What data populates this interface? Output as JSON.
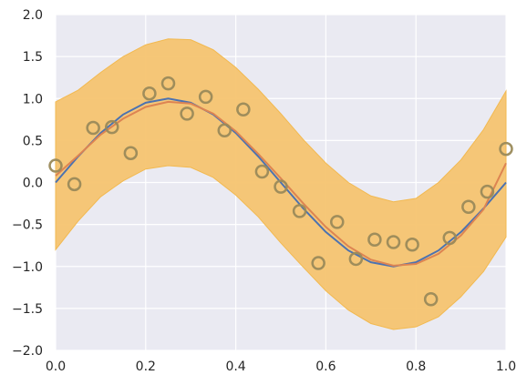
{
  "chart_data": {
    "type": "scatter",
    "title": "",
    "xlabel": "",
    "ylabel": "",
    "xlim": [
      0.0,
      1.0
    ],
    "ylim": [
      -2.0,
      2.0
    ],
    "grid": true,
    "x_ticks": [
      "0.0",
      "0.2",
      "0.4",
      "0.6",
      "0.8",
      "1.0"
    ],
    "y_ticks": [
      "2.0",
      "1.5",
      "1.0",
      "0.5",
      "0.0",
      "−0.5",
      "−1.0",
      "−1.5",
      "−2.0"
    ],
    "colors": {
      "background": "#eaeaf2",
      "grid": "#ffffff",
      "band": "#f5c470",
      "band_edge": "#f2b950",
      "true_line": "#4c72b0",
      "fit_line": "#dd8452",
      "points": "#9a8a5a"
    },
    "series": [
      {
        "kind": "points",
        "x": [
          0.0,
          0.0417,
          0.0833,
          0.125,
          0.1667,
          0.2083,
          0.25,
          0.2917,
          0.3333,
          0.375,
          0.4167,
          0.4583,
          0.5,
          0.5417,
          0.5833,
          0.625,
          0.6667,
          0.7083,
          0.75,
          0.7917,
          0.8333,
          0.875,
          0.9167,
          0.9583,
          1.0
        ],
        "y": [
          0.2,
          -0.02,
          0.65,
          0.66,
          0.35,
          1.06,
          1.18,
          0.82,
          1.02,
          0.62,
          0.87,
          0.13,
          -0.05,
          -0.34,
          -0.96,
          -0.47,
          -0.91,
          -0.68,
          -0.71,
          -0.74,
          -1.39,
          -0.66,
          -0.29,
          -0.11,
          0.4
        ]
      },
      {
        "kind": "true_curve",
        "x": [
          0.0,
          0.05,
          0.1,
          0.15,
          0.2,
          0.25,
          0.3,
          0.35,
          0.4,
          0.45,
          0.5,
          0.55,
          0.6,
          0.65,
          0.7,
          0.75,
          0.8,
          0.85,
          0.9,
          0.95,
          1.0
        ],
        "y": [
          0.0,
          0.31,
          0.59,
          0.81,
          0.95,
          1.0,
          0.95,
          0.81,
          0.59,
          0.31,
          0.0,
          -0.31,
          -0.59,
          -0.81,
          -0.95,
          -1.0,
          -0.95,
          -0.81,
          -0.59,
          -0.31,
          0.0
        ]
      },
      {
        "kind": "fit_curve",
        "x": [
          0.0,
          0.05,
          0.1,
          0.15,
          0.2,
          0.25,
          0.3,
          0.35,
          0.4,
          0.45,
          0.5,
          0.55,
          0.6,
          0.65,
          0.7,
          0.75,
          0.8,
          0.85,
          0.9,
          0.95,
          1.0
        ],
        "y": [
          0.08,
          0.32,
          0.57,
          0.76,
          0.9,
          0.96,
          0.94,
          0.82,
          0.61,
          0.34,
          0.05,
          -0.25,
          -0.53,
          -0.76,
          -0.92,
          -0.99,
          -0.97,
          -0.85,
          -0.63,
          -0.32,
          0.23
        ]
      },
      {
        "kind": "band",
        "x": [
          0.0,
          0.05,
          0.1,
          0.15,
          0.2,
          0.25,
          0.3,
          0.35,
          0.4,
          0.45,
          0.5,
          0.55,
          0.6,
          0.65,
          0.7,
          0.75,
          0.8,
          0.85,
          0.9,
          0.95,
          1.0
        ],
        "upper": [
          0.96,
          1.1,
          1.31,
          1.5,
          1.64,
          1.71,
          1.7,
          1.58,
          1.37,
          1.11,
          0.82,
          0.51,
          0.23,
          0.0,
          -0.16,
          -0.23,
          -0.19,
          0.0,
          0.27,
          0.63,
          1.09
        ],
        "lower": [
          -0.8,
          -0.46,
          -0.17,
          0.02,
          0.16,
          0.2,
          0.18,
          0.06,
          -0.15,
          -0.41,
          -0.72,
          -1.01,
          -1.29,
          -1.52,
          -1.68,
          -1.75,
          -1.72,
          -1.6,
          -1.36,
          -1.06,
          -0.65
        ]
      }
    ]
  }
}
